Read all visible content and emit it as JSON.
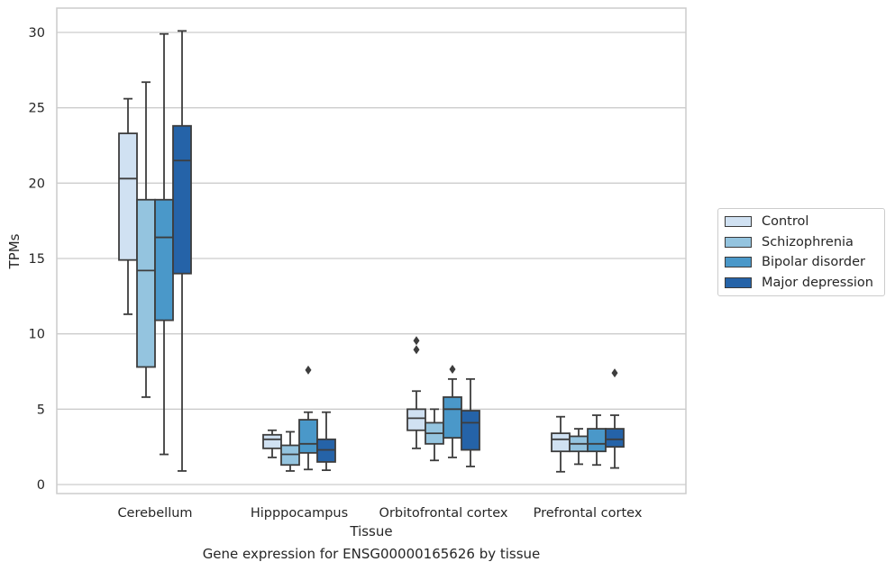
{
  "caption": "Gene expression for ENSG00000165626 by tissue",
  "chart_data": {
    "type": "boxplot",
    "title": "",
    "xlabel": "Tissue",
    "ylabel": "TPMs",
    "ylim": [
      -0.6,
      31.6
    ],
    "yticks": [
      0,
      5,
      10,
      15,
      20,
      25,
      30
    ],
    "grid": "horizontal",
    "legend_placement": "outside-right",
    "categories": [
      "Cerebellum",
      "Hipppocampus",
      "Orbitofrontal cortex",
      "Prefrontal cortex"
    ],
    "series": [
      {
        "name": "Control",
        "color": "#d0e1f2",
        "boxes": [
          {
            "whislo": 11.3,
            "q1": 14.9,
            "med": 20.3,
            "q3": 23.3,
            "whishi": 25.6,
            "fliers": []
          },
          {
            "whislo": 1.8,
            "q1": 2.4,
            "med": 3.0,
            "q3": 3.3,
            "whishi": 3.6,
            "fliers": []
          },
          {
            "whislo": 2.4,
            "q1": 3.6,
            "med": 4.4,
            "q3": 5.0,
            "whishi": 6.2,
            "fliers": [
              8.95,
              9.55
            ]
          },
          {
            "whislo": 0.85,
            "q1": 2.2,
            "med": 3.0,
            "q3": 3.4,
            "whishi": 4.5,
            "fliers": []
          }
        ]
      },
      {
        "name": "Schizophrenia",
        "color": "#94c4df",
        "boxes": [
          {
            "whislo": 5.8,
            "q1": 7.8,
            "med": 14.2,
            "q3": 18.9,
            "whishi": 26.7,
            "fliers": []
          },
          {
            "whislo": 0.9,
            "q1": 1.3,
            "med": 2.0,
            "q3": 2.6,
            "whishi": 3.5,
            "fliers": []
          },
          {
            "whislo": 1.6,
            "q1": 2.7,
            "med": 3.4,
            "q3": 4.1,
            "whishi": 5.0,
            "fliers": []
          },
          {
            "whislo": 1.35,
            "q1": 2.2,
            "med": 2.7,
            "q3": 3.2,
            "whishi": 3.7,
            "fliers": []
          }
        ]
      },
      {
        "name": "Bipolar disorder",
        "color": "#4a98c9",
        "boxes": [
          {
            "whislo": 2.0,
            "q1": 10.9,
            "med": 16.4,
            "q3": 18.9,
            "whishi": 29.9,
            "fliers": []
          },
          {
            "whislo": 1.0,
            "q1": 2.1,
            "med": 2.7,
            "q3": 4.3,
            "whishi": 4.8,
            "fliers": [
              7.6
            ]
          },
          {
            "whislo": 1.8,
            "q1": 3.1,
            "med": 5.0,
            "q3": 5.8,
            "whishi": 7.0,
            "fliers": [
              7.65
            ]
          },
          {
            "whislo": 1.3,
            "q1": 2.2,
            "med": 2.7,
            "q3": 3.7,
            "whishi": 4.6,
            "fliers": []
          }
        ]
      },
      {
        "name": "Major depression",
        "color": "#2563a8",
        "boxes": [
          {
            "whislo": 0.9,
            "q1": 14.0,
            "med": 21.5,
            "q3": 23.8,
            "whishi": 30.1,
            "fliers": []
          },
          {
            "whislo": 0.95,
            "q1": 1.5,
            "med": 2.3,
            "q3": 3.0,
            "whishi": 4.8,
            "fliers": []
          },
          {
            "whislo": 1.2,
            "q1": 2.3,
            "med": 4.1,
            "q3": 4.9,
            "whishi": 7.0,
            "fliers": []
          },
          {
            "whislo": 1.1,
            "q1": 2.5,
            "med": 3.0,
            "q3": 3.7,
            "whishi": 4.6,
            "fliers": [
              7.4
            ]
          }
        ]
      }
    ]
  }
}
